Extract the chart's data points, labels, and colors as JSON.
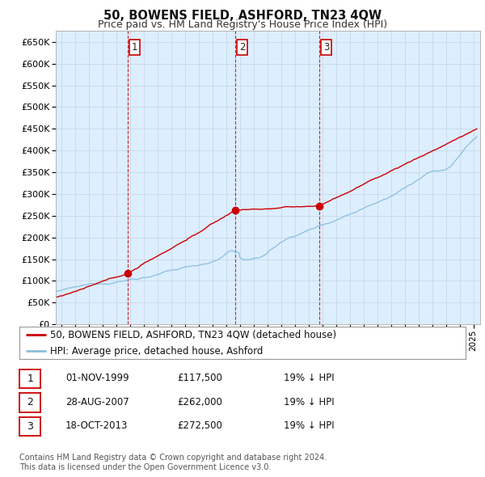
{
  "title": "50, BOWENS FIELD, ASHFORD, TN23 4QW",
  "subtitle": "Price paid vs. HM Land Registry's House Price Index (HPI)",
  "ytick_values": [
    0,
    50000,
    100000,
    150000,
    200000,
    250000,
    300000,
    350000,
    400000,
    450000,
    500000,
    550000,
    600000,
    650000
  ],
  "ylim": [
    0,
    675000
  ],
  "xlim_start": 1994.6,
  "xlim_end": 2025.5,
  "sale_dates": [
    1999.833,
    2007.65,
    2013.79
  ],
  "sale_prices": [
    117500,
    262000,
    272500
  ],
  "sale_labels": [
    "1",
    "2",
    "3"
  ],
  "hpi_color": "#89bfdf",
  "price_color": "#cc0000",
  "grid_color": "#c8d8e8",
  "plot_bg_color": "#ddeeff",
  "background_color": "#ffffff",
  "legend_entries": [
    "50, BOWENS FIELD, ASHFORD, TN23 4QW (detached house)",
    "HPI: Average price, detached house, Ashford"
  ],
  "table_rows": [
    [
      "1",
      "01-NOV-1999",
      "£117,500",
      "19% ↓ HPI"
    ],
    [
      "2",
      "28-AUG-2007",
      "£262,000",
      "19% ↓ HPI"
    ],
    [
      "3",
      "18-OCT-2013",
      "£272,500",
      "19% ↓ HPI"
    ]
  ],
  "footnote": "Contains HM Land Registry data © Crown copyright and database right 2024.\nThis data is licensed under the Open Government Licence v3.0.",
  "title_fontsize": 10.5,
  "subtitle_fontsize": 9,
  "tick_fontsize": 8,
  "legend_fontsize": 8.5,
  "table_fontsize": 8.5,
  "footnote_fontsize": 7.0
}
